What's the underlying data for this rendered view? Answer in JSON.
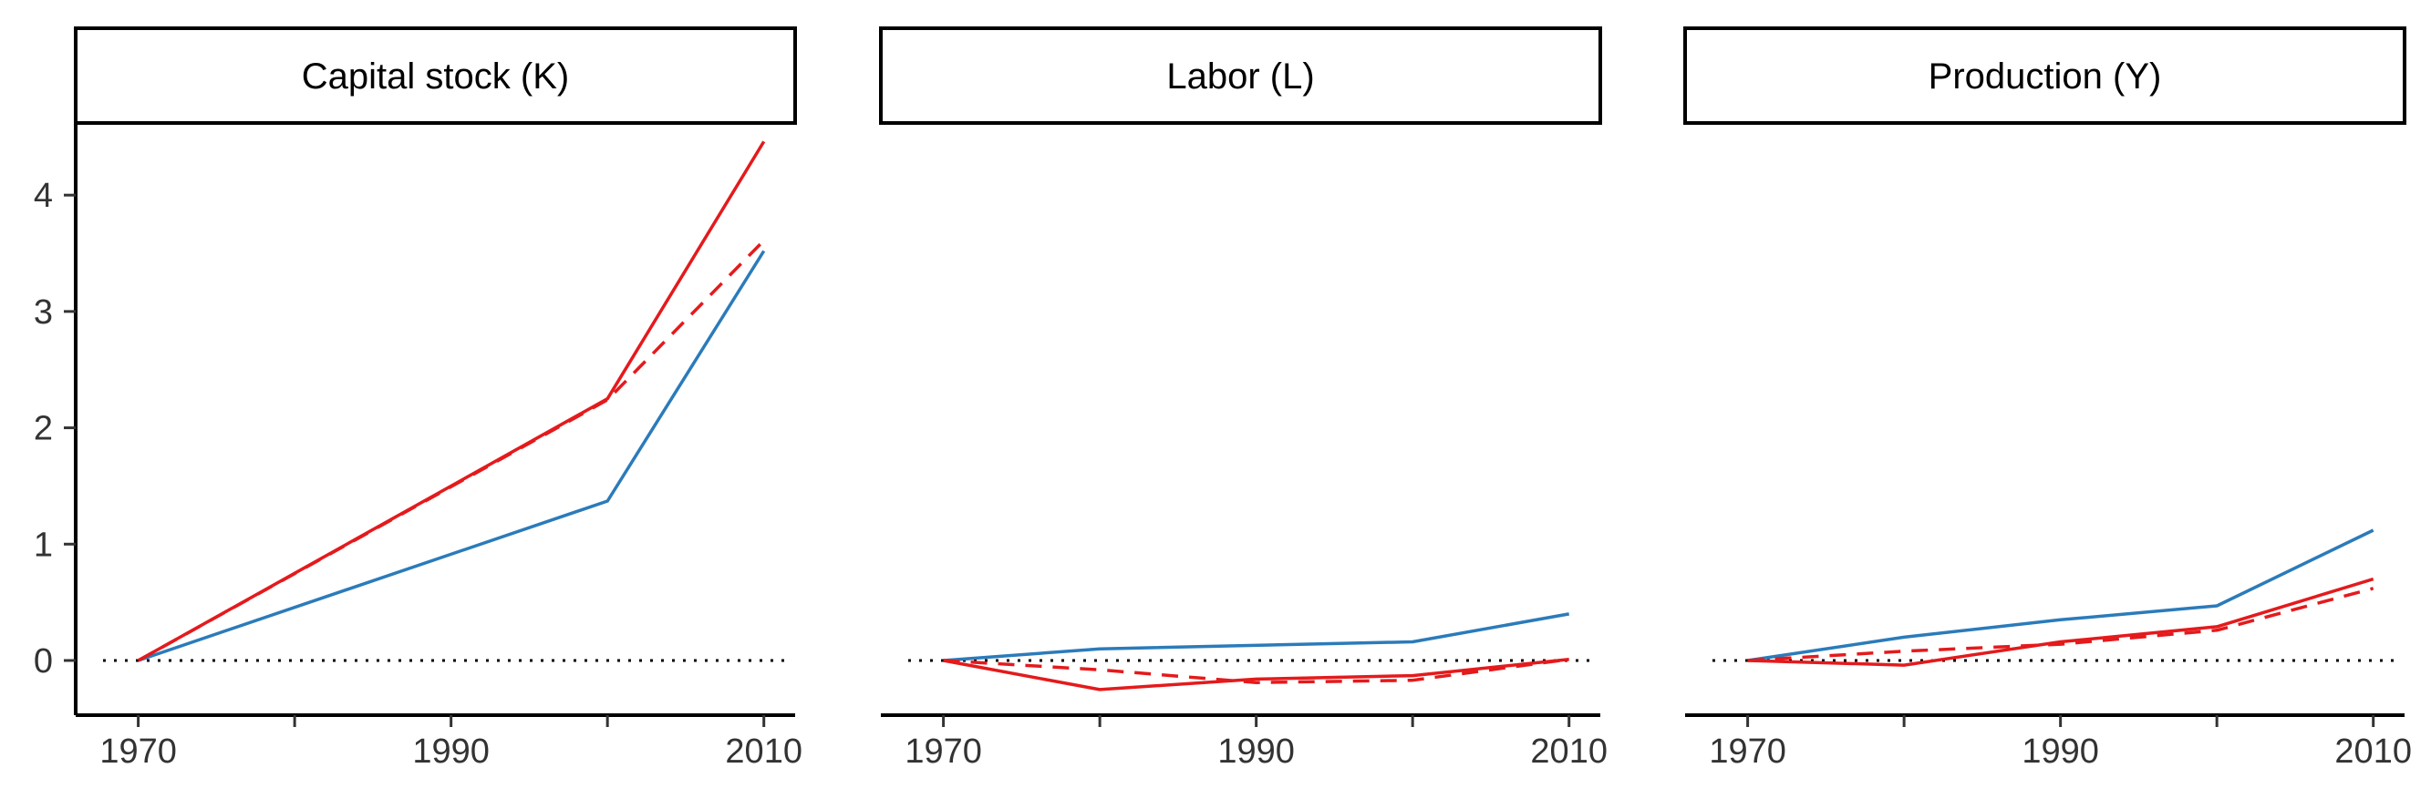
{
  "chart_data": {
    "type": "line",
    "facet_layout": "1 row x 3 columns, shared y axis",
    "x_ticks": [
      1970,
      1990,
      2010
    ],
    "x_minor_ticks": [
      1980,
      2000
    ],
    "xlim": [
      1966,
      2012
    ],
    "y_ticks": [
      0,
      1,
      2,
      3,
      4
    ],
    "ylim": [
      -0.47,
      4.62
    ],
    "grid": false,
    "legend": "none",
    "reference_line": {
      "y": 0,
      "style": "dotted",
      "color": "#000000"
    },
    "series_styles": [
      {
        "color": "#2b7bba",
        "dash": "solid"
      },
      {
        "color": "#e41a1c",
        "dash": "solid"
      },
      {
        "color": "#e41a1c",
        "dash": "dashed"
      }
    ],
    "panels": [
      {
        "title": "Capital stock (K)",
        "series": [
          {
            "x": [
              1970,
              2000,
              2010
            ],
            "values": [
              0,
              1.37,
              3.52
            ]
          },
          {
            "x": [
              1970,
              2000,
              2010
            ],
            "values": [
              0,
              2.25,
              4.46
            ]
          },
          {
            "x": [
              1970,
              2000,
              2010
            ],
            "values": [
              0,
              2.24,
              3.61
            ]
          }
        ]
      },
      {
        "title": "Labor (L)",
        "series": [
          {
            "x": [
              1970,
              1980,
              2000,
              2010
            ],
            "values": [
              0,
              0.1,
              0.16,
              0.4
            ]
          },
          {
            "x": [
              1970,
              1980,
              1990,
              2000,
              2010
            ],
            "values": [
              0,
              -0.25,
              -0.16,
              -0.13,
              0.01
            ]
          },
          {
            "x": [
              1970,
              1980,
              1990,
              2000,
              2010
            ],
            "values": [
              0,
              -0.08,
              -0.19,
              -0.17,
              0.01
            ]
          }
        ]
      },
      {
        "title": "Production (Y)",
        "series": [
          {
            "x": [
              1970,
              1980,
              1990,
              2000,
              2010
            ],
            "values": [
              0,
              0.2,
              0.35,
              0.47,
              1.12
            ]
          },
          {
            "x": [
              1970,
              1980,
              1990,
              2000,
              2010
            ],
            "values": [
              0,
              -0.04,
              0.16,
              0.29,
              0.7
            ]
          },
          {
            "x": [
              1970,
              1980,
              1990,
              2000,
              2010
            ],
            "values": [
              0,
              0.08,
              0.14,
              0.26,
              0.62
            ]
          }
        ]
      }
    ]
  }
}
